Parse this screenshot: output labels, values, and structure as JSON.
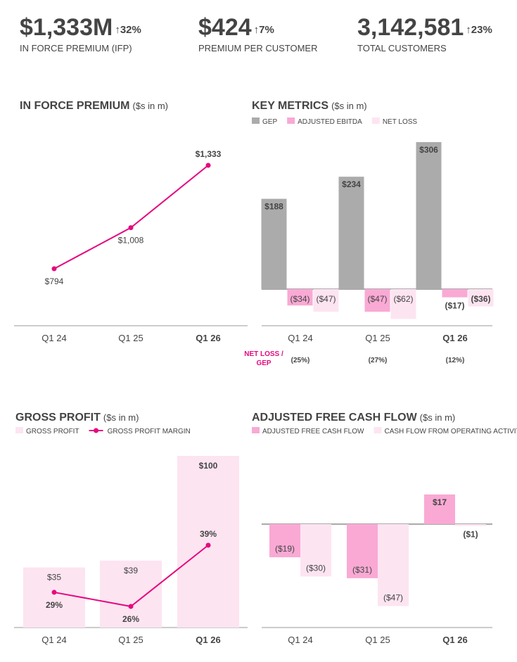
{
  "kpis": [
    {
      "value": "$1,333M",
      "change": "↑32%",
      "label": "IN FORCE PREMIUM (IFP)"
    },
    {
      "value": "$424",
      "change": "↑7%",
      "label": "PREMIUM PER CUSTOMER"
    },
    {
      "value": "3,142,581",
      "change": "↑23%",
      "label": "TOTAL CUSTOMERS"
    }
  ],
  "chart_data": [
    {
      "type": "line",
      "title": "IN FORCE PREMIUM",
      "subtitle": "($s in m)",
      "categories": [
        "Q1 24",
        "Q1 25",
        "Q1 26"
      ],
      "values": [
        794,
        1008,
        1333
      ],
      "value_labels": [
        "$794",
        "$1,008",
        "$1,333"
      ],
      "color": "#e5097f"
    },
    {
      "type": "bar",
      "title": "KEY METRICS",
      "subtitle": "($s in m)",
      "categories": [
        "Q1 24",
        "Q1 25",
        "Q1 26"
      ],
      "series": [
        {
          "name": "GEP",
          "color": "#ababab",
          "values": [
            188,
            234,
            306
          ],
          "value_labels": [
            "$188",
            "$234",
            "$306"
          ]
        },
        {
          "name": "ADJUSTED EBITDA",
          "color": "#f9a9d4",
          "values": [
            -34,
            -47,
            -17
          ],
          "value_labels": [
            "($34)",
            "($47)",
            "($17)"
          ]
        },
        {
          "name": "NET LOSS",
          "color": "#fde4f1",
          "values": [
            -47,
            -62,
            -36
          ],
          "value_labels": [
            "($47)",
            "($62)",
            "($36)"
          ]
        }
      ],
      "ratio": {
        "label": "NET LOSS / GEP",
        "values": [
          -25,
          -27,
          -12
        ],
        "value_labels": [
          "(25%)",
          "(27%)",
          "(12%)"
        ]
      }
    },
    {
      "type": "combo",
      "title": "GROSS PROFIT",
      "subtitle": "($s in m)",
      "categories": [
        "Q1 24",
        "Q1 25",
        "Q1 26"
      ],
      "series": [
        {
          "name": "GROSS PROFIT",
          "color": "#fde4f1",
          "values": [
            35,
            39,
            100
          ],
          "value_labels": [
            "$35",
            "$39",
            "$100"
          ]
        },
        {
          "name": "GROSS PROFIT MARGIN",
          "color": "#e5097f",
          "axis": "y2",
          "values": [
            29,
            26,
            39
          ],
          "value_labels": [
            "29%",
            "26%",
            "39%"
          ]
        }
      ]
    },
    {
      "type": "bar",
      "title": "ADJUSTED FREE CASH FLOW",
      "subtitle": "($s in m)",
      "categories": [
        "Q1 24",
        "Q1 25",
        "Q1 26"
      ],
      "series": [
        {
          "name": "ADJUSTED FREE CASH FLOW",
          "color": "#f9a9d4",
          "values": [
            -19,
            -31,
            17
          ],
          "value_labels": [
            "($19)",
            "($31)",
            "$17"
          ]
        },
        {
          "name": "CASH FLOW FROM OPERATING ACTIVITIES",
          "color": "#fde4f1",
          "values": [
            -30,
            -47,
            -1
          ],
          "value_labels": [
            "($30)",
            "($47)",
            "($1)"
          ]
        }
      ]
    }
  ]
}
